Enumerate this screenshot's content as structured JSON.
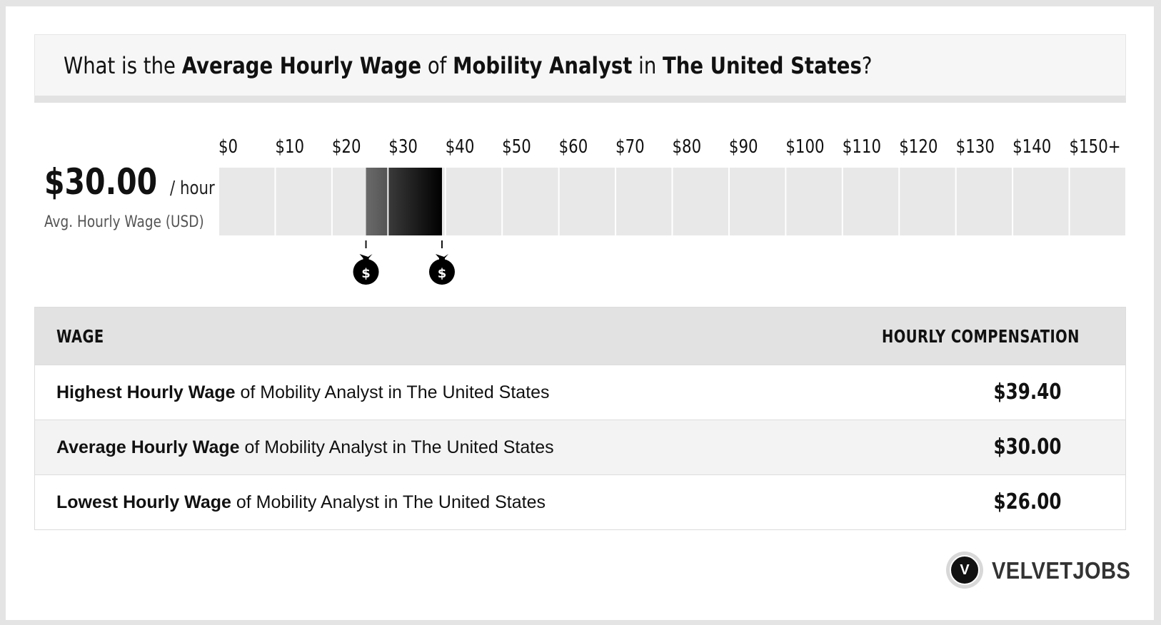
{
  "header": {
    "q_prefix": "What is the",
    "q_metric": "Average Hourly Wage",
    "q_of": "of",
    "q_job": "Mobility Analyst",
    "q_in": "in",
    "q_location": "The United States",
    "q_end": "?"
  },
  "summary": {
    "value": "$30.00",
    "unit": "/ hour",
    "caption": "Avg. Hourly Wage (USD)"
  },
  "chart_data": {
    "type": "bar",
    "title": "",
    "xlabel": "",
    "ylabel": "",
    "tick_labels": [
      "$0",
      "$10",
      "$20",
      "$30",
      "$40",
      "$50",
      "$60",
      "$70",
      "$80",
      "$90",
      "$100",
      "$110",
      "$120",
      "$130",
      "$140",
      "$150+"
    ],
    "xlim": [
      0,
      150
    ],
    "range": {
      "low": 26.0,
      "average": 30.0,
      "high": 39.4
    },
    "markers": [
      {
        "name": "lowest",
        "value": 26.0,
        "glyph": "$"
      },
      {
        "name": "highest",
        "value": 39.4,
        "glyph": "$"
      }
    ],
    "colors": {
      "track": "#e8e8e8",
      "low_segment": "#555555",
      "high_segment": "#000000"
    }
  },
  "table": {
    "col_wage": "WAGE",
    "col_comp": "HOURLY COMPENSATION",
    "rows": [
      {
        "bold": "Highest Hourly Wage",
        "rest": " of Mobility Analyst in The United States",
        "value": "$39.40"
      },
      {
        "bold": "Average Hourly Wage",
        "rest": " of Mobility Analyst in The United States",
        "value": "$30.00"
      },
      {
        "bold": "Lowest Hourly Wage",
        "rest": " of Mobility Analyst in The United States",
        "value": "$26.00"
      }
    ]
  },
  "logo": {
    "mark_letter": "V",
    "wordmark": "VELVETJOBS"
  }
}
